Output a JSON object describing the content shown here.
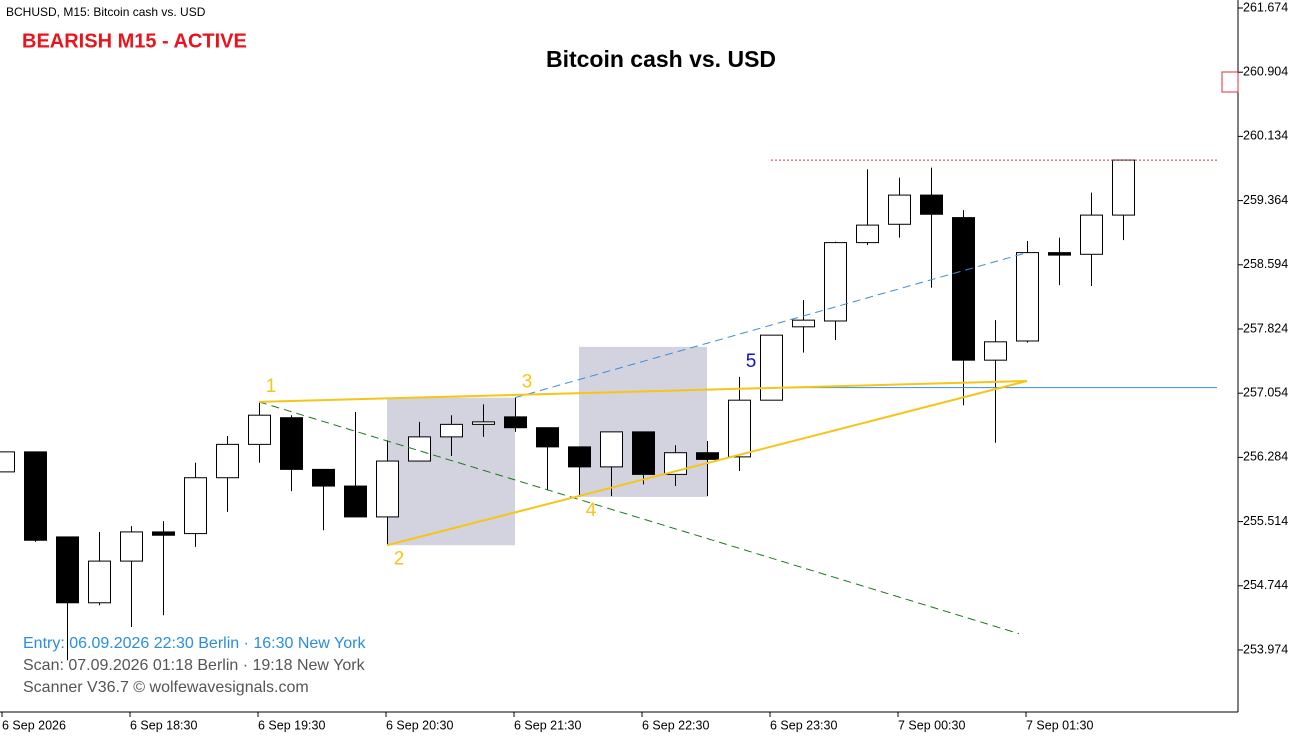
{
  "chart_data": {
    "type": "candlestick",
    "header": "BCHUSD, M15:  Bitcoin cash vs. USD",
    "status": "BEARISH M15 - ACTIVE",
    "title": "Bitcoin cash vs. USD",
    "info": [
      "Entry: 06.09.2026  22:30 Berlin · 16:30 New York",
      "Scan:  07.09.2026  01:18 Berlin · 19:18 New York",
      "Scanner V36.7   © wolfewavesignals.com"
    ],
    "categories": [
      "6 Sep 2026",
      null,
      null,
      null,
      "6 Sep 18:30",
      null,
      null,
      null,
      "6 Sep 19:30",
      null,
      null,
      null,
      "6 Sep 20:30",
      null,
      null,
      null,
      "6 Sep 21:30",
      null,
      null,
      null,
      "6 Sep 22:30",
      null,
      null,
      null,
      "6 Sep 23:30",
      null,
      null,
      null,
      "7 Sep 00:30",
      null,
      null,
      null,
      "7 Sep 01:30",
      null,
      null,
      null
    ],
    "open": [
      256.11,
      256.35,
      255.33,
      254.54,
      255.04,
      255.39,
      255.37,
      256.04,
      256.44,
      256.76,
      256.14,
      255.94,
      255.57,
      256.24,
      256.53,
      256.68,
      256.77,
      256.64,
      256.41,
      256.17,
      256.59,
      256.08,
      256.34,
      256.29,
      256.97,
      257.85,
      257.92,
      258.86,
      259.08,
      259.43,
      259.16,
      257.45,
      257.68,
      258.74,
      258.72,
      259.19
    ],
    "high": [
      256.35,
      256.35,
      255.33,
      255.39,
      255.46,
      255.52,
      256.22,
      256.54,
      256.95,
      256.79,
      256.14,
      256.83,
      256.49,
      256.71,
      256.79,
      256.92,
      257.0,
      256.64,
      256.41,
      256.59,
      256.59,
      256.43,
      256.48,
      257.25,
      257.75,
      258.17,
      258.87,
      259.74,
      259.64,
      259.76,
      259.25,
      257.93,
      258.88,
      258.92,
      259.46,
      259.85
    ],
    "low": [
      256.11,
      255.27,
      253.85,
      254.51,
      254.25,
      254.39,
      255.21,
      255.63,
      256.22,
      255.88,
      255.41,
      255.57,
      255.23,
      256.24,
      256.3,
      256.53,
      256.59,
      255.89,
      255.81,
      255.82,
      255.96,
      255.94,
      255.82,
      256.12,
      256.97,
      257.54,
      257.69,
      258.83,
      258.92,
      258.32,
      256.91,
      256.46,
      257.66,
      258.35,
      258.34,
      258.89
    ],
    "close": [
      256.35,
      255.29,
      254.54,
      255.04,
      255.39,
      255.35,
      256.04,
      256.44,
      256.79,
      256.14,
      255.94,
      255.57,
      256.24,
      256.53,
      256.68,
      256.71,
      256.64,
      256.41,
      256.17,
      256.59,
      256.08,
      256.34,
      256.26,
      256.97,
      257.75,
      257.93,
      258.86,
      259.07,
      259.43,
      259.2,
      257.45,
      257.67,
      258.74,
      258.71,
      259.19,
      259.85
    ],
    "up_color": "#ffffff",
    "down_color": "#000000",
    "wick_color": "#000000",
    "ylim": [
      253.23,
      261.77
    ],
    "yticks": [
      253.974,
      254.744,
      255.514,
      256.284,
      257.054,
      257.824,
      258.594,
      259.364,
      260.134,
      260.904,
      261.674
    ],
    "zones": [
      {
        "x": [
          12,
          16
        ],
        "y": [
          255.23,
          257.0
        ],
        "color": "#d3d3e0"
      },
      {
        "x": [
          18,
          22
        ],
        "y": [
          255.81,
          257.61
        ],
        "color": "#d3d3e0"
      }
    ],
    "levels": [
      {
        "value": 259.85,
        "from": 24,
        "to": 38,
        "color": "#e0303a",
        "style": "dotted"
      },
      {
        "value": 257.12,
        "from": 24,
        "to": 38,
        "color": "#3a8fd8",
        "style": "solid"
      }
    ],
    "lines": [
      {
        "x": [
          8,
          31.75
        ],
        "y": [
          256.95,
          254.17
        ],
        "color": "#1a7a1a",
        "style": "dashed"
      },
      {
        "x": [
          16,
          32
        ],
        "y": [
          257.0,
          258.74
        ],
        "color": "#3a8fd8",
        "style": "dashed"
      },
      {
        "x": [
          8,
          32
        ],
        "y": [
          256.95,
          257.2
        ],
        "color": "#f5c518",
        "style": "solid"
      },
      {
        "x": [
          12,
          32
        ],
        "y": [
          255.23,
          257.2
        ],
        "color": "#f5c518",
        "style": "solid"
      }
    ],
    "waves": [
      {
        "label": "1",
        "x": 8,
        "y": 256.95,
        "position": "above",
        "color": "#f5c518"
      },
      {
        "label": "2",
        "x": 12,
        "y": 255.23,
        "position": "below",
        "color": "#f5c518"
      },
      {
        "label": "3",
        "x": 16,
        "y": 257.0,
        "position": "above",
        "color": "#f5c518"
      },
      {
        "label": "4",
        "x": 18,
        "y": 255.81,
        "position": "below",
        "color": "#f5c518"
      },
      {
        "label": "5",
        "x": 23,
        "y": 257.25,
        "position": "above",
        "color": "#1010d0"
      }
    ]
  }
}
